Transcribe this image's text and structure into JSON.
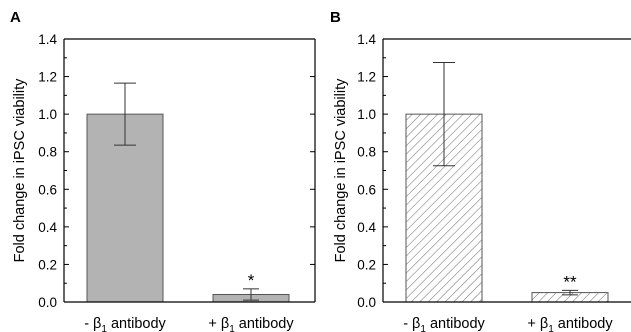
{
  "chart_data": [
    {
      "panel_label": "A",
      "type": "bar",
      "categories": [
        "- β1 antibody",
        "+ β1 antibody"
      ],
      "values": [
        1.0,
        0.04
      ],
      "errors": [
        0.165,
        0.03
      ],
      "significance": [
        "",
        "*"
      ],
      "bar_fill": "#b3b3b3",
      "pattern": "solid",
      "title": "",
      "xlabel": "",
      "ylabel": "Fold change in iPSC viability",
      "ylim": [
        0,
        1.4
      ],
      "yticks": [
        "0.0",
        "0.2",
        "0.4",
        "0.6",
        "0.8",
        "1.0",
        "1.2",
        "1.4"
      ],
      "grid": false
    },
    {
      "panel_label": "B",
      "type": "bar",
      "categories": [
        "- β1 antibody",
        "+ β1 antibody"
      ],
      "values": [
        1.0,
        0.05
      ],
      "errors": [
        0.275,
        0.012
      ],
      "significance": [
        "",
        "**"
      ],
      "bar_fill": "#ffffff",
      "pattern": "hatched",
      "title": "",
      "xlabel": "",
      "ylabel": "Fold change in iPSC viability",
      "ylim": [
        0,
        1.4
      ],
      "yticks": [
        "0.0",
        "0.2",
        "0.4",
        "0.6",
        "0.8",
        "1.0",
        "1.2",
        "1.4"
      ],
      "grid": false
    }
  ],
  "colors": {
    "axis": "#000000",
    "bar_edge": "#555555",
    "hatch": "#777777"
  },
  "tick_parts": {
    "minus_prefix": "- β",
    "plus_prefix": "+ β",
    "subscript": "1",
    "suffix": " antibody"
  }
}
